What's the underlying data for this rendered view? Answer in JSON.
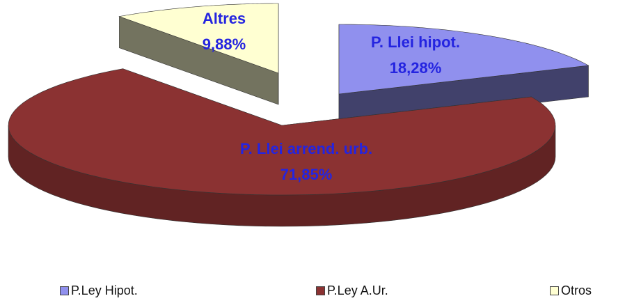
{
  "chart_data": {
    "type": "pie3d",
    "categories": [
      "P.Ley Hipot.",
      "P.Ley A.Ur.",
      "Otros"
    ],
    "labels": [
      "P. Llei hipot.",
      "P. Llei arrend. urb.",
      "Altres"
    ],
    "values": [
      18.28,
      71.85,
      9.88
    ],
    "value_labels": [
      "18,28%",
      "71,85%",
      "9,88%"
    ],
    "colors": [
      "#9090ee",
      "#8b3232",
      "#ffffd2"
    ],
    "legend": "bottom"
  }
}
